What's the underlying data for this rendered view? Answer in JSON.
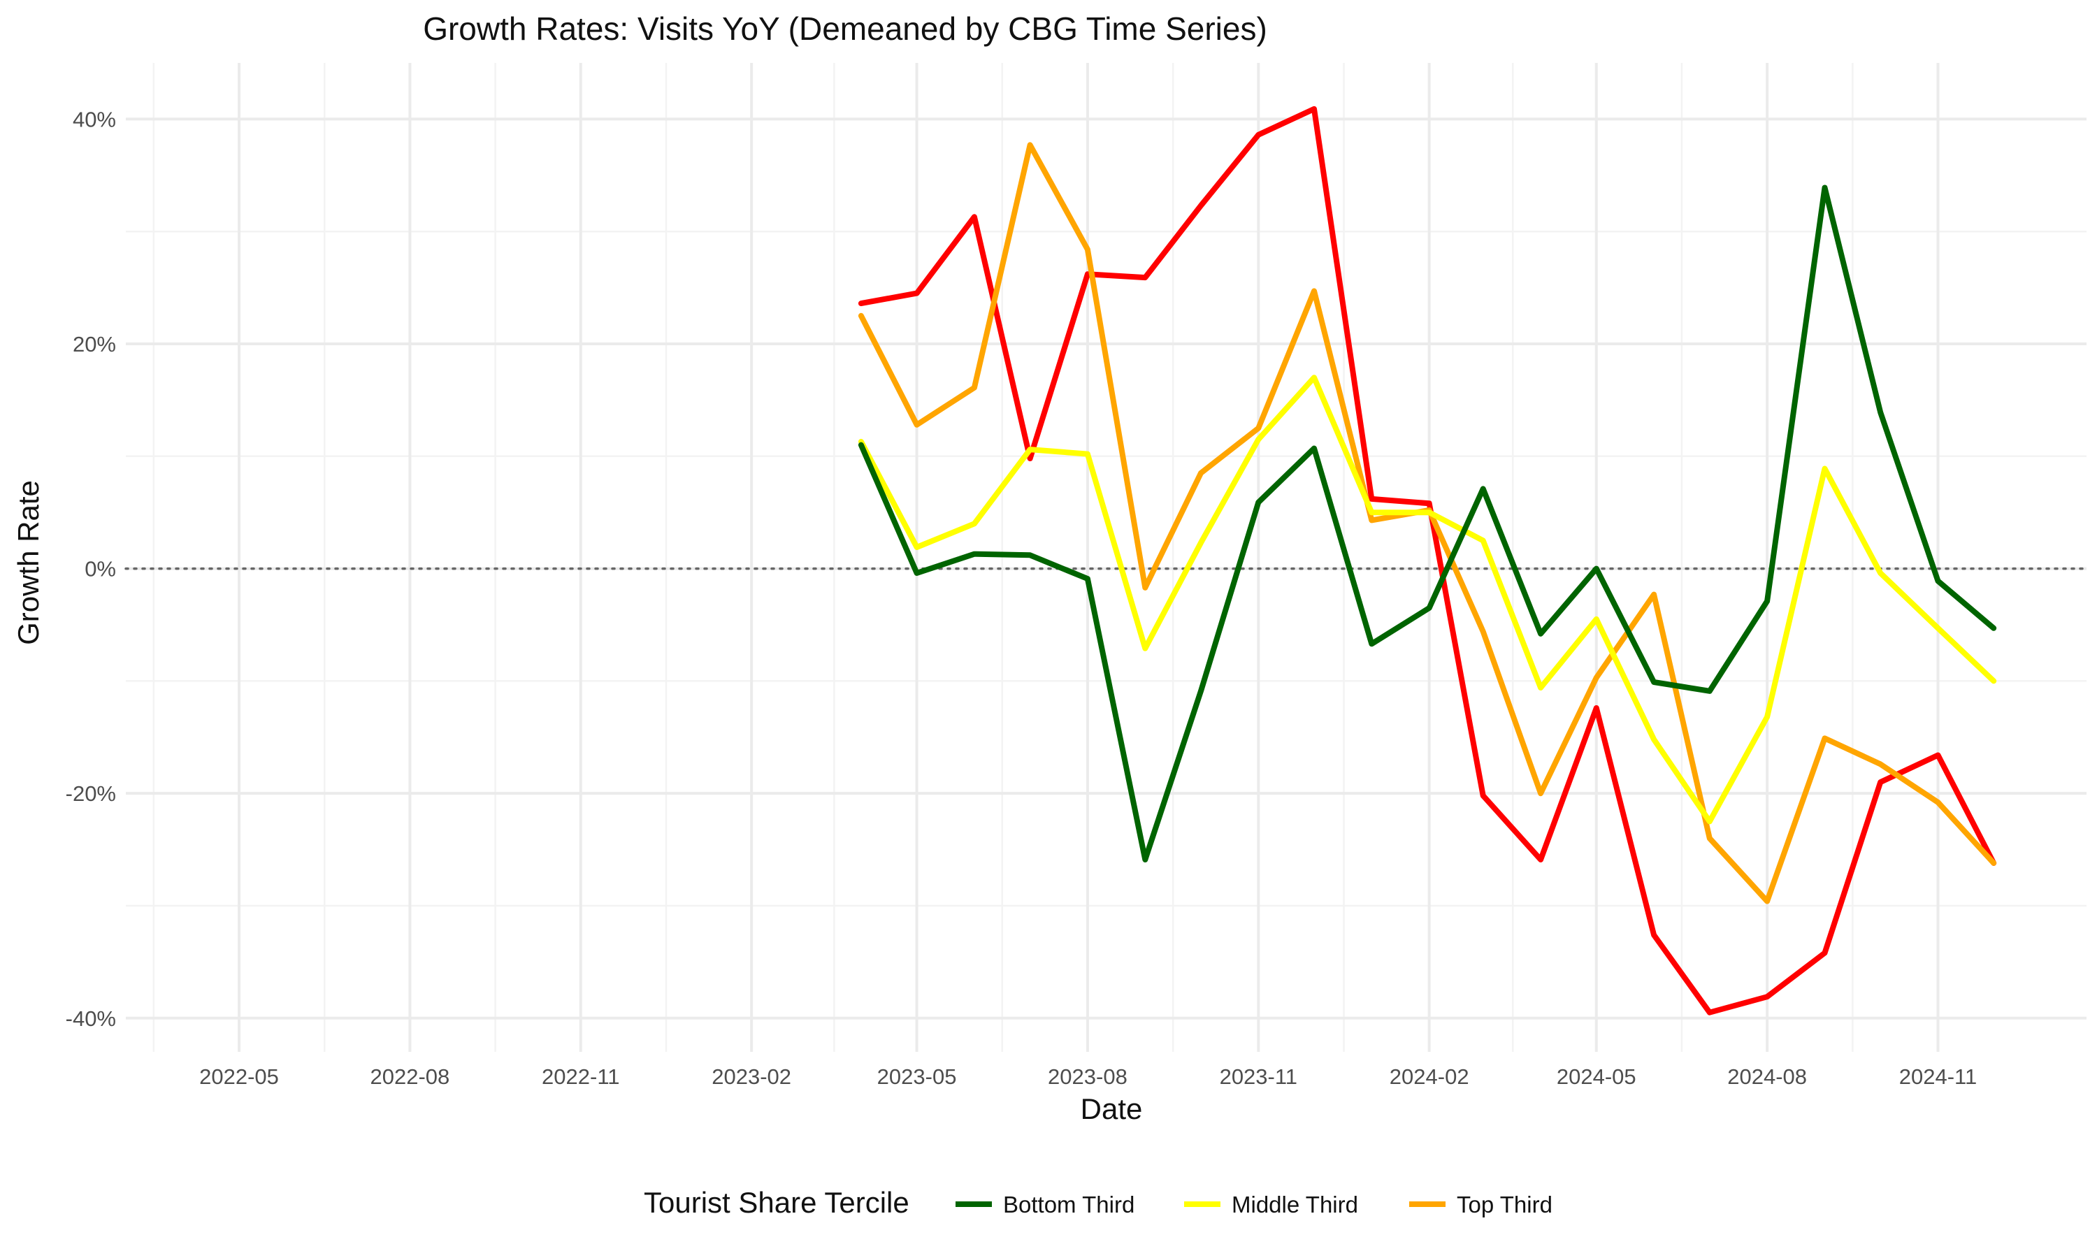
{
  "chart_data": {
    "type": "line",
    "title": "Growth Rates: Visits YoY (Demeaned by CBG Time Series)",
    "xlabel": "Date",
    "ylabel": "Growth Rate",
    "x_range": [
      "2022-03-01",
      "2025-01-20"
    ],
    "ylim": [
      -0.43,
      0.45
    ],
    "y_ticks": [
      -0.4,
      -0.2,
      0.0,
      0.2,
      0.4
    ],
    "y_tick_labels": [
      "-40%",
      "-20%",
      "0%",
      "20%",
      "40%"
    ],
    "x_ticks": [
      "2022-05-01",
      "2022-08-01",
      "2022-11-01",
      "2023-02-01",
      "2023-05-01",
      "2023-08-01",
      "2023-11-01",
      "2024-02-01",
      "2024-05-01",
      "2024-08-01",
      "2024-11-01"
    ],
    "x_tick_labels": [
      "2022-05",
      "2022-08",
      "2022-11",
      "2023-02",
      "2023-05",
      "2023-08",
      "2023-11",
      "2024-02",
      "2024-05",
      "2024-08",
      "2024-11"
    ],
    "reference_line": {
      "y": 0,
      "style": "dotted"
    },
    "grid": true,
    "legend": {
      "title": "Tourist Share Tercile",
      "position": "bottom"
    },
    "x": [
      "2023-04-01",
      "2023-05-01",
      "2023-06-01",
      "2023-07-01",
      "2023-08-01",
      "2023-09-01",
      "2023-10-01",
      "2023-11-01",
      "2023-12-01",
      "2024-01-01",
      "2024-02-01",
      "2024-03-01",
      "2024-04-01",
      "2024-05-01",
      "2024-06-01",
      "2024-07-01",
      "2024-08-01",
      "2024-09-01",
      "2024-10-01",
      "2024-11-01",
      "2024-12-01"
    ],
    "series": [
      {
        "name": "",
        "color": "#ff0000",
        "in_legend": false,
        "values": [
          0.236,
          0.245,
          0.313,
          0.098,
          0.262,
          0.259,
          0.323,
          0.386,
          0.409,
          0.062,
          0.058,
          -0.202,
          -0.259,
          -0.124,
          -0.326,
          -0.395,
          -0.381,
          -0.342,
          -0.19,
          -0.166,
          -0.262
        ]
      },
      {
        "name": "Top Third",
        "color": "#ffa500",
        "in_legend": true,
        "values": [
          0.225,
          0.128,
          0.161,
          0.377,
          0.284,
          -0.017,
          0.085,
          0.125,
          0.247,
          0.043,
          0.052,
          -0.056,
          -0.2,
          -0.097,
          -0.023,
          -0.24,
          -0.296,
          -0.151,
          -0.174,
          -0.208,
          -0.262
        ]
      },
      {
        "name": "Middle Third",
        "color": "#ffff00",
        "in_legend": true,
        "values": [
          0.113,
          0.019,
          0.04,
          0.106,
          0.102,
          -0.071,
          0.023,
          0.115,
          0.17,
          0.05,
          0.05,
          0.025,
          -0.106,
          -0.045,
          -0.152,
          -0.225,
          -0.132,
          0.089,
          -0.004,
          -0.053,
          -0.1
        ]
      },
      {
        "name": "Bottom Third",
        "color": "#006400",
        "in_legend": true,
        "values": [
          0.11,
          -0.004,
          0.013,
          0.012,
          -0.009,
          -0.259,
          -0.109,
          0.059,
          0.107,
          -0.067,
          -0.035,
          0.071,
          -0.058,
          0.0,
          -0.101,
          -0.109,
          -0.029,
          0.339,
          0.139,
          -0.011,
          -0.053
        ]
      }
    ]
  }
}
